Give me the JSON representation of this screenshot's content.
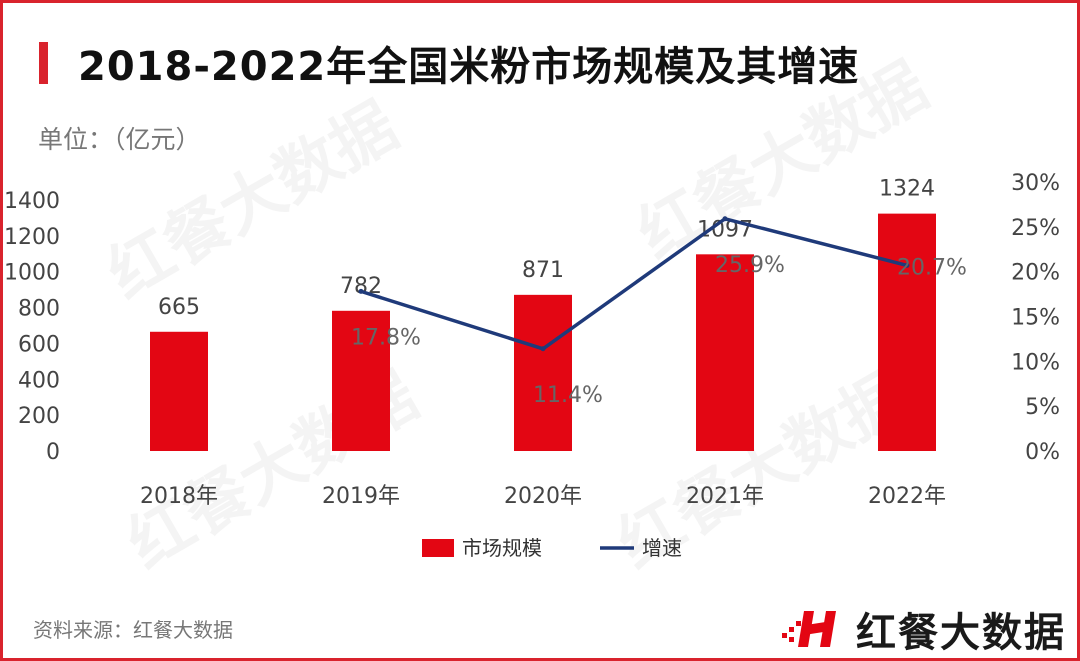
{
  "title": "2018-2022年全国米粉市场规模及其增速",
  "unit": "单位：（亿元）",
  "source": "资料来源：红餐大数据",
  "brand": "红餐大数据",
  "watermark": "红餐大数据",
  "colors": {
    "bar": "#e30613",
    "line": "#1f3a7a",
    "accent": "#d9232d"
  },
  "chart_data": {
    "type": "bar",
    "categories": [
      "2018年",
      "2019年",
      "2020年",
      "2021年",
      "2022年"
    ],
    "series": [
      {
        "name": "市场规模",
        "type": "bar",
        "axis": "left",
        "values": [
          665,
          782,
          871,
          1097,
          1324
        ],
        "labels": [
          "665",
          "782",
          "871",
          "1097",
          "1324"
        ]
      },
      {
        "name": "增速",
        "type": "line",
        "axis": "right",
        "values": [
          null,
          17.8,
          11.4,
          25.9,
          20.7
        ],
        "labels": [
          "",
          "17.8%",
          "11.4%",
          "25.9%",
          "20.7%"
        ]
      }
    ],
    "y_left": {
      "min": 0,
      "max": 1400,
      "ticks": [
        "0",
        "200",
        "400",
        "600",
        "800",
        "1000",
        "1200",
        "1400"
      ]
    },
    "y_right": {
      "min": 0,
      "max": 30,
      "ticks": [
        "0%",
        "5%",
        "10%",
        "15%",
        "20%",
        "25%",
        "30%"
      ]
    },
    "legend": {
      "position": "bottom",
      "items": [
        "市场规模",
        "增速"
      ]
    },
    "grid": false
  }
}
